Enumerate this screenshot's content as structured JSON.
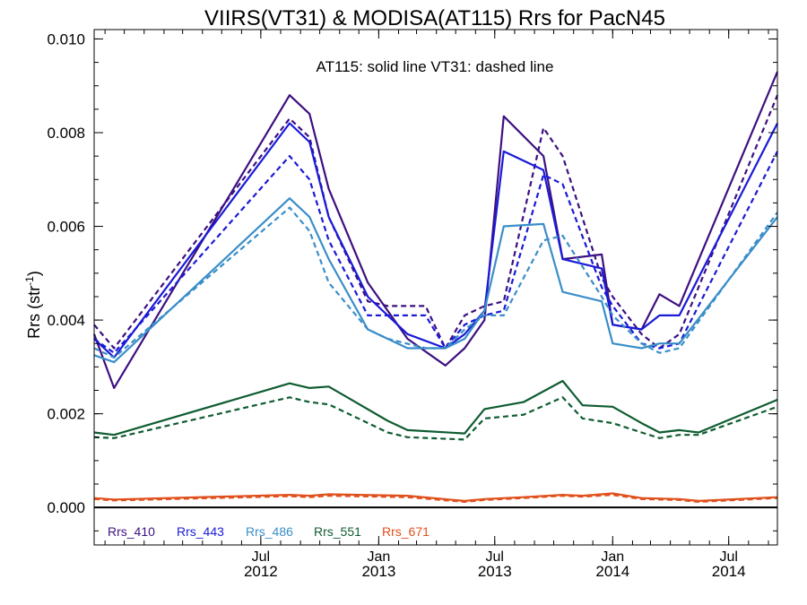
{
  "chart_data": {
    "type": "line",
    "title": "VIIRS(VT31) & MODISA(AT115)  Rrs for PacN45",
    "ylabel_main": "Rrs (str",
    "ylabel_sup": "-1",
    "ylabel_close": ")",
    "xlabel": "",
    "annotation": "AT115: solid line   VT31: dashed line",
    "xlim": [
      "2011-10-15",
      "2014-09-15"
    ],
    "ylim": [
      -0.0008,
      0.0102
    ],
    "yticks": [
      {
        "value": 0.0,
        "label": "0.000"
      },
      {
        "value": 0.002,
        "label": "0.002"
      },
      {
        "value": 0.004,
        "label": "0.004"
      },
      {
        "value": 0.006,
        "label": "0.006"
      },
      {
        "value": 0.008,
        "label": "0.008"
      },
      {
        "value": 0.01,
        "label": "0.010"
      }
    ],
    "xticks": [
      {
        "date": "2012-07-01",
        "month": "Jul",
        "year": "2012"
      },
      {
        "date": "2013-01-01",
        "month": "Jan",
        "year": "2013"
      },
      {
        "date": "2013-07-01",
        "month": "Jul",
        "year": "2013"
      },
      {
        "date": "2014-01-01",
        "month": "Jan",
        "year": "2014"
      },
      {
        "date": "2014-07-01",
        "month": "Jul",
        "year": "2014"
      }
    ],
    "grid": false,
    "legend_position": "bottom-left",
    "zero_line": true,
    "series": [
      {
        "name": "Rrs_410",
        "sensor": "AT115",
        "style": "solid",
        "color": "#3d1080",
        "dates": [
          "2011-10-15",
          "2011-11-15",
          "2012-08-15",
          "2012-09-15",
          "2012-10-15",
          "2012-12-15",
          "2013-02-15",
          "2013-04-15",
          "2013-05-15",
          "2013-06-15",
          "2013-07-15",
          "2013-09-15",
          "2013-10-15",
          "2013-12-15",
          "2014-01-01",
          "2014-02-15",
          "2014-03-15",
          "2014-04-15",
          "2014-09-15"
        ],
        "values": [
          0.0037,
          0.00255,
          0.0088,
          0.0084,
          0.0068,
          0.0048,
          0.0036,
          0.00303,
          0.0034,
          0.004,
          0.00835,
          0.0075,
          0.0053,
          0.0054,
          0.0039,
          0.0038,
          0.00455,
          0.0043,
          0.0093
        ]
      },
      {
        "name": "Rrs_410",
        "sensor": "VT31",
        "style": "dashed",
        "color": "#3d1080",
        "dates": [
          "2011-10-15",
          "2011-11-15",
          "2012-08-15",
          "2012-09-15",
          "2012-10-15",
          "2012-12-15",
          "2013-01-15",
          "2013-03-15",
          "2013-04-15",
          "2013-05-15",
          "2013-06-15",
          "2013-07-15",
          "2013-09-15",
          "2013-10-15",
          "2013-12-15",
          "2014-01-01",
          "2014-02-15",
          "2014-03-15",
          "2014-04-15",
          "2014-09-15"
        ],
        "values": [
          0.0039,
          0.0034,
          0.0083,
          0.0079,
          0.0062,
          0.0044,
          0.0043,
          0.0043,
          0.0034,
          0.0041,
          0.0043,
          0.0044,
          0.0081,
          0.0075,
          0.0049,
          0.0045,
          0.0037,
          0.0034,
          0.0037,
          0.0088
        ]
      },
      {
        "name": "Rrs_443",
        "sensor": "AT115",
        "style": "solid",
        "color": "#1a1ad8",
        "dates": [
          "2011-10-15",
          "2011-11-15",
          "2012-08-15",
          "2012-09-15",
          "2012-10-15",
          "2012-12-15",
          "2013-02-15",
          "2013-04-15",
          "2013-05-15",
          "2013-06-15",
          "2013-07-15",
          "2013-09-15",
          "2013-10-15",
          "2013-12-15",
          "2014-01-01",
          "2014-02-15",
          "2014-03-15",
          "2014-04-15",
          "2014-09-15"
        ],
        "values": [
          0.0036,
          0.0032,
          0.0082,
          0.0078,
          0.0062,
          0.0045,
          0.0037,
          0.0034,
          0.0037,
          0.0042,
          0.0076,
          0.0072,
          0.0053,
          0.0051,
          0.0039,
          0.0038,
          0.0041,
          0.0041,
          0.0082
        ]
      },
      {
        "name": "Rrs_443",
        "sensor": "VT31",
        "style": "dashed",
        "color": "#1a1ad8",
        "dates": [
          "2011-10-15",
          "2011-11-15",
          "2012-08-15",
          "2012-09-15",
          "2012-10-15",
          "2012-12-15",
          "2013-01-15",
          "2013-03-15",
          "2013-04-15",
          "2013-05-15",
          "2013-06-15",
          "2013-07-15",
          "2013-09-15",
          "2013-10-15",
          "2013-12-15",
          "2014-01-01",
          "2014-02-15",
          "2014-03-15",
          "2014-04-15",
          "2014-09-15"
        ],
        "values": [
          0.0036,
          0.0033,
          0.0075,
          0.007,
          0.0057,
          0.0041,
          0.0041,
          0.0041,
          0.0034,
          0.0039,
          0.0041,
          0.0042,
          0.0071,
          0.0069,
          0.0047,
          0.0043,
          0.0035,
          0.0034,
          0.0035,
          0.0076
        ]
      },
      {
        "name": "Rrs_486",
        "sensor": "AT115",
        "style": "solid",
        "color": "#3a8ec8",
        "dates": [
          "2011-10-15",
          "2011-11-15",
          "2012-08-15",
          "2012-09-15",
          "2012-10-15",
          "2012-12-15",
          "2013-02-15",
          "2013-04-15",
          "2013-05-15",
          "2013-06-15",
          "2013-07-15",
          "2013-09-15",
          "2013-10-15",
          "2013-12-15",
          "2014-01-01",
          "2014-02-15",
          "2014-03-15",
          "2014-04-15",
          "2014-09-15"
        ],
        "values": [
          0.00325,
          0.0031,
          0.0066,
          0.0062,
          0.0053,
          0.0038,
          0.0034,
          0.0034,
          0.0036,
          0.0042,
          0.006,
          0.00605,
          0.0046,
          0.0044,
          0.0035,
          0.0034,
          0.0035,
          0.0035,
          0.0062
        ]
      },
      {
        "name": "Rrs_486",
        "sensor": "VT31",
        "style": "dashed",
        "color": "#3a8ec8",
        "dates": [
          "2011-10-15",
          "2011-11-15",
          "2012-08-15",
          "2012-09-15",
          "2012-10-15",
          "2012-12-15",
          "2013-01-15",
          "2013-03-15",
          "2013-04-15",
          "2013-05-15",
          "2013-06-15",
          "2013-07-15",
          "2013-09-15",
          "2013-10-15",
          "2013-12-15",
          "2014-01-01",
          "2014-02-15",
          "2014-03-15",
          "2014-04-15",
          "2014-09-15"
        ],
        "values": [
          0.0034,
          0.0032,
          0.0064,
          0.0059,
          0.0048,
          0.0038,
          0.0036,
          0.0034,
          0.0034,
          0.0038,
          0.0041,
          0.0041,
          0.0057,
          0.0058,
          0.0045,
          0.0041,
          0.0035,
          0.0033,
          0.0034,
          0.0063
        ]
      },
      {
        "name": "Rrs_551",
        "sensor": "AT115",
        "style": "solid",
        "color": "#0e5c30",
        "dates": [
          "2011-10-15",
          "2011-11-15",
          "2012-08-15",
          "2012-09-15",
          "2012-10-15",
          "2013-01-15",
          "2013-02-15",
          "2013-05-15",
          "2013-06-15",
          "2013-08-15",
          "2013-10-15",
          "2013-11-15",
          "2014-01-01",
          "2014-02-15",
          "2014-03-15",
          "2014-04-15",
          "2014-05-15",
          "2014-09-15"
        ],
        "values": [
          0.0016,
          0.00155,
          0.00265,
          0.00255,
          0.00258,
          0.00185,
          0.00165,
          0.00158,
          0.0021,
          0.00225,
          0.0027,
          0.00218,
          0.00215,
          0.0018,
          0.0016,
          0.00165,
          0.0016,
          0.0023
        ]
      },
      {
        "name": "Rrs_551",
        "sensor": "VT31",
        "style": "dashed",
        "color": "#0e5c30",
        "dates": [
          "2011-10-15",
          "2011-11-15",
          "2012-08-15",
          "2012-09-15",
          "2012-10-15",
          "2013-01-15",
          "2013-02-15",
          "2013-05-15",
          "2013-06-15",
          "2013-08-15",
          "2013-10-15",
          "2013-11-15",
          "2014-01-01",
          "2014-02-15",
          "2014-03-15",
          "2014-04-15",
          "2014-05-15",
          "2014-09-15"
        ],
        "values": [
          0.0015,
          0.00148,
          0.00235,
          0.00225,
          0.0022,
          0.0016,
          0.0015,
          0.00145,
          0.0019,
          0.00198,
          0.00235,
          0.0019,
          0.0018,
          0.0016,
          0.00148,
          0.00155,
          0.00155,
          0.00215
        ]
      },
      {
        "name": "Rrs_671",
        "sensor": "AT115",
        "style": "solid",
        "color": "#e0501c",
        "dates": [
          "2011-10-15",
          "2011-11-15",
          "2012-08-15",
          "2012-09-15",
          "2012-10-15",
          "2013-02-15",
          "2013-05-15",
          "2013-06-15",
          "2013-08-15",
          "2013-10-15",
          "2013-11-15",
          "2014-01-01",
          "2014-02-15",
          "2014-04-15",
          "2014-05-15",
          "2014-09-15"
        ],
        "values": [
          0.0002,
          0.00017,
          0.00027,
          0.00025,
          0.00028,
          0.00025,
          0.00014,
          0.00018,
          0.00022,
          0.00027,
          0.00025,
          0.0003,
          0.0002,
          0.00018,
          0.00014,
          0.00022
        ]
      },
      {
        "name": "Rrs_671",
        "sensor": "VT31",
        "style": "dashed",
        "color": "#e0501c",
        "dates": [
          "2011-10-15",
          "2011-11-15",
          "2012-08-15",
          "2012-09-15",
          "2012-10-15",
          "2013-02-15",
          "2013-05-15",
          "2013-06-15",
          "2013-08-15",
          "2013-10-15",
          "2013-11-15",
          "2014-01-01",
          "2014-02-15",
          "2014-04-15",
          "2014-05-15",
          "2014-09-15"
        ],
        "values": [
          0.00018,
          0.00015,
          0.00024,
          0.00022,
          0.00025,
          0.00022,
          0.00012,
          0.00016,
          0.0002,
          0.00025,
          0.00023,
          0.00027,
          0.00018,
          0.00016,
          0.00012,
          0.0002
        ]
      }
    ],
    "legend": [
      {
        "label": "Rrs_410",
        "color": "#3d1080"
      },
      {
        "label": "Rrs_443",
        "color": "#1a1ad8"
      },
      {
        "label": "Rrs_486",
        "color": "#3a8ec8"
      },
      {
        "label": "Rrs_551",
        "color": "#0e5c30"
      },
      {
        "label": "Rrs_671",
        "color": "#e0501c"
      }
    ]
  }
}
